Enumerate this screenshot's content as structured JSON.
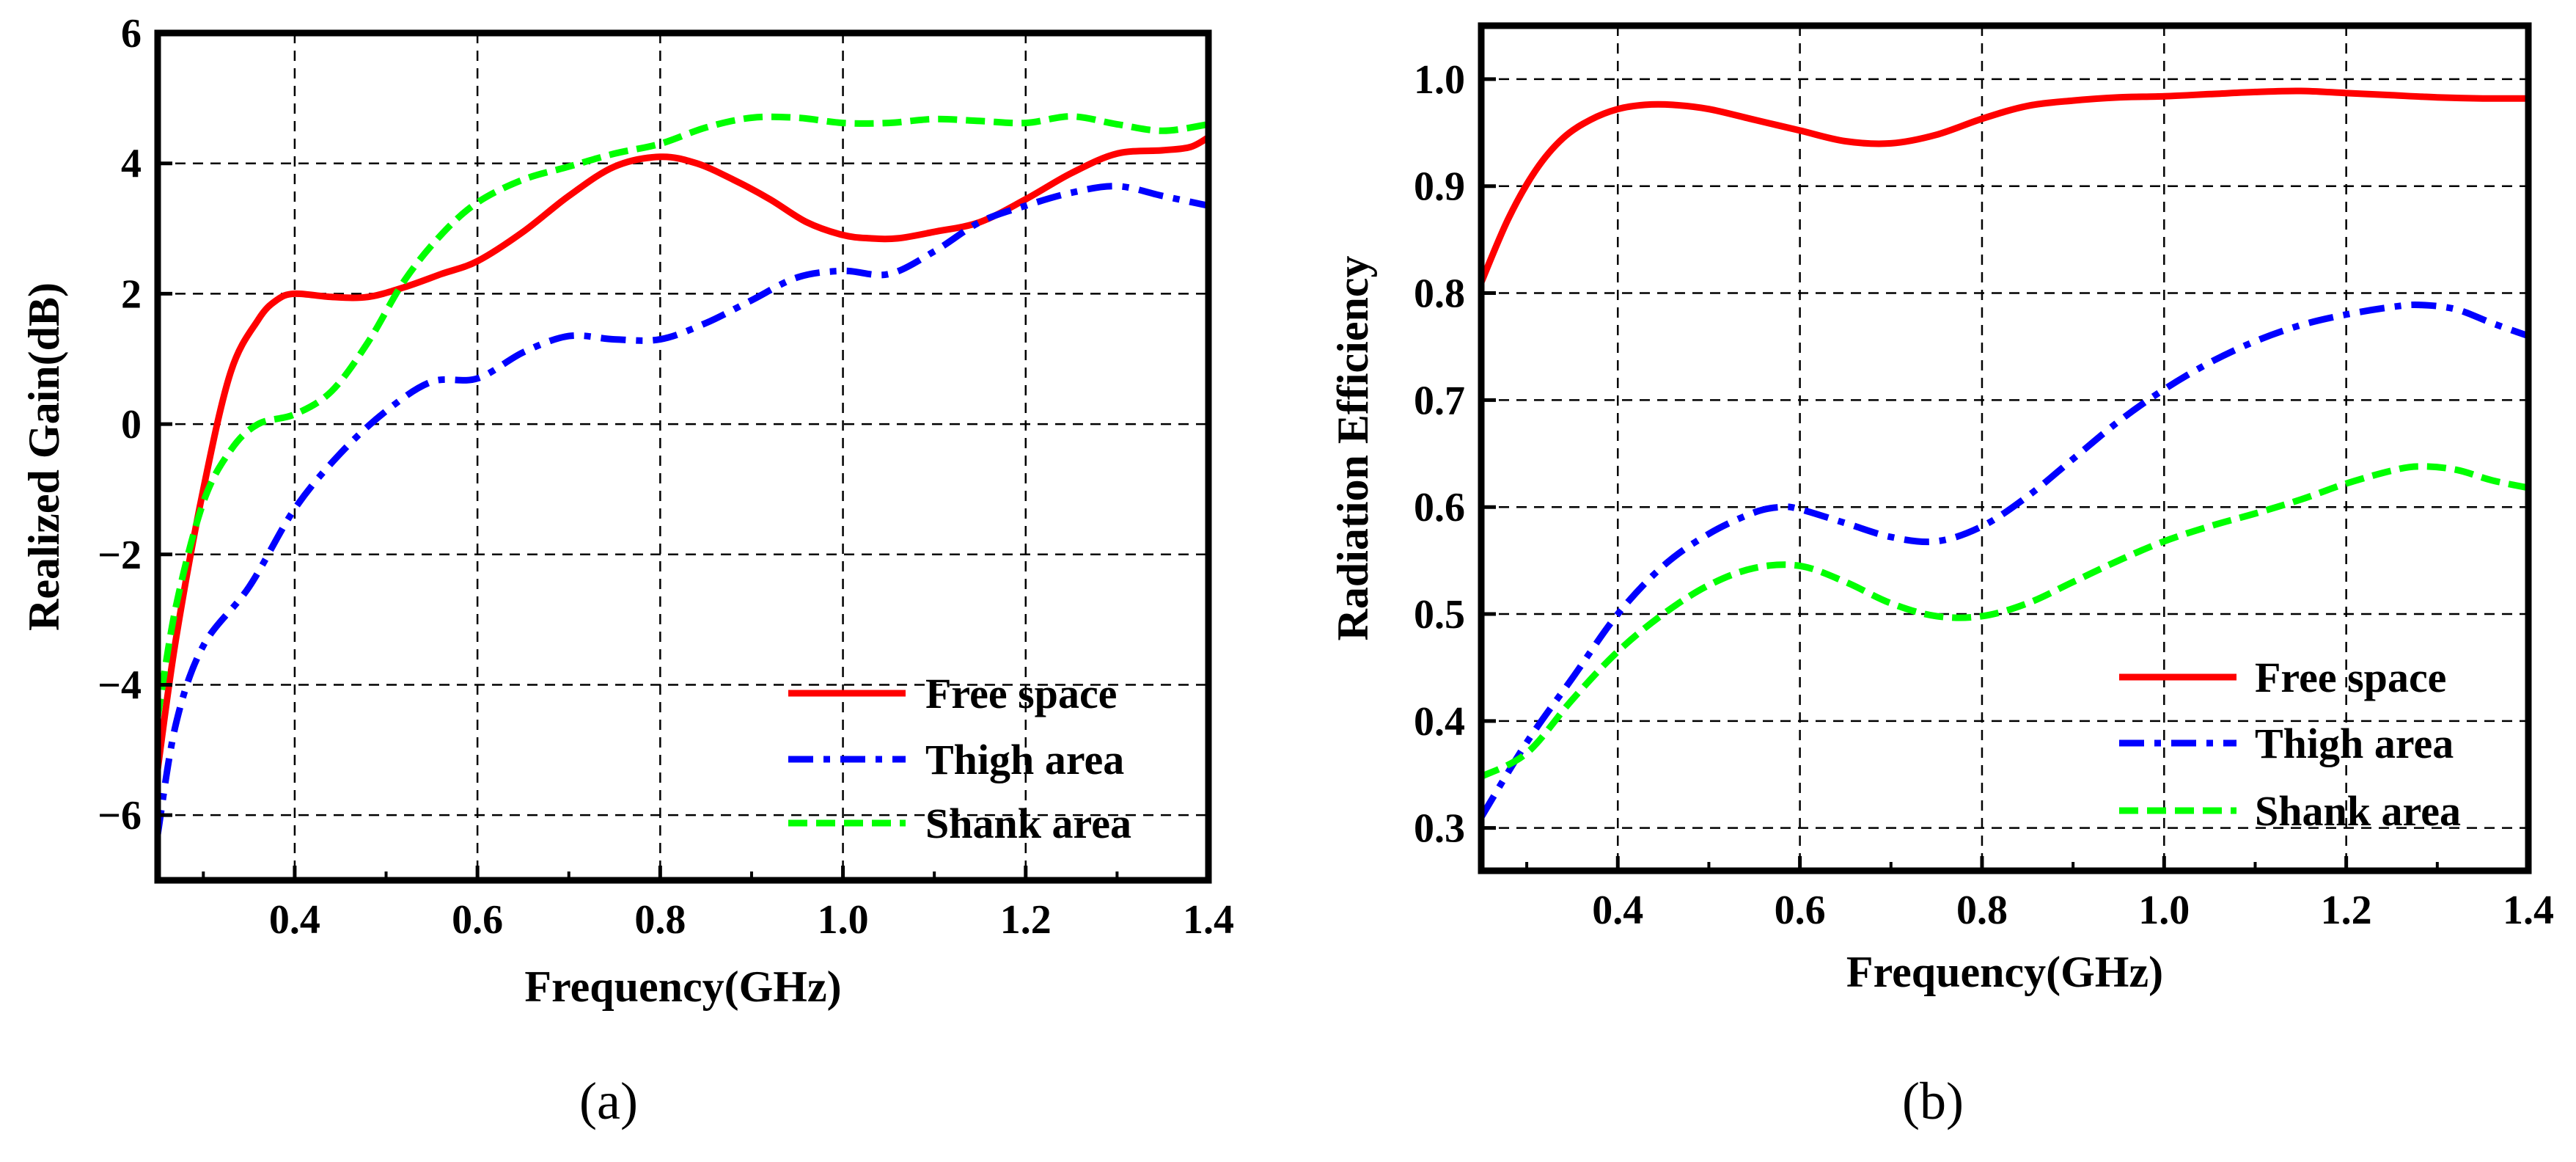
{
  "chart_data": [
    {
      "type": "line",
      "caption": "(a)",
      "xlabel": "Frequency(GHz)",
      "ylabel": "Realized Gain(dB)",
      "xlim": [
        0.25,
        1.4
      ],
      "ylim": [
        -7,
        6
      ],
      "xticks": [
        0.4,
        0.6,
        0.8,
        1.0,
        1.2,
        1.4
      ],
      "xtick_labels": [
        "0.4",
        "0.6",
        "0.8",
        "1.0",
        "1.2",
        "1.4"
      ],
      "yticks": [
        -6,
        -4,
        -2,
        0,
        2,
        4,
        6
      ],
      "ytick_labels": [
        "−6",
        "−4",
        "−2",
        "0",
        "2",
        "4",
        "6"
      ],
      "grid": true,
      "legend_position": "bottom-right",
      "series": [
        {
          "name": "Free space",
          "color": "#ff0000",
          "style": "solid",
          "x": [
            0.25,
            0.27,
            0.3,
            0.33,
            0.36,
            0.38,
            0.4,
            0.44,
            0.48,
            0.52,
            0.56,
            0.6,
            0.65,
            0.7,
            0.75,
            0.8,
            0.84,
            0.88,
            0.92,
            0.96,
            1.0,
            1.03,
            1.06,
            1.1,
            1.15,
            1.2,
            1.25,
            1.3,
            1.35,
            1.38,
            1.4
          ],
          "y": [
            -5.3,
            -3.3,
            -1.0,
            0.8,
            1.6,
            1.9,
            2.0,
            1.95,
            1.95,
            2.1,
            2.3,
            2.5,
            2.95,
            3.5,
            3.95,
            4.1,
            4.0,
            3.75,
            3.45,
            3.1,
            2.9,
            2.85,
            2.85,
            2.95,
            3.1,
            3.45,
            3.85,
            4.15,
            4.2,
            4.25,
            4.4
          ]
        },
        {
          "name": "Thigh area",
          "color": "#0000ff",
          "style": "dashdot",
          "x": [
            0.25,
            0.27,
            0.3,
            0.35,
            0.4,
            0.45,
            0.5,
            0.55,
            0.6,
            0.65,
            0.7,
            0.75,
            0.8,
            0.85,
            0.9,
            0.95,
            1.0,
            1.05,
            1.1,
            1.15,
            1.2,
            1.25,
            1.3,
            1.35,
            1.4
          ],
          "y": [
            -6.3,
            -4.6,
            -3.4,
            -2.5,
            -1.3,
            -0.45,
            0.2,
            0.65,
            0.7,
            1.1,
            1.35,
            1.3,
            1.3,
            1.55,
            1.9,
            2.25,
            2.35,
            2.3,
            2.65,
            3.1,
            3.35,
            3.55,
            3.65,
            3.5,
            3.35
          ]
        },
        {
          "name": "Shank area",
          "color": "#00ff00",
          "style": "dashed",
          "x": [
            0.25,
            0.27,
            0.3,
            0.33,
            0.36,
            0.4,
            0.44,
            0.48,
            0.52,
            0.56,
            0.6,
            0.65,
            0.7,
            0.75,
            0.8,
            0.85,
            0.9,
            0.95,
            1.0,
            1.05,
            1.1,
            1.15,
            1.2,
            1.25,
            1.3,
            1.35,
            1.4
          ],
          "y": [
            -4.5,
            -2.8,
            -1.2,
            -0.4,
            0.0,
            0.15,
            0.5,
            1.25,
            2.2,
            2.9,
            3.4,
            3.75,
            3.95,
            4.15,
            4.3,
            4.55,
            4.7,
            4.7,
            4.62,
            4.62,
            4.68,
            4.65,
            4.62,
            4.72,
            4.6,
            4.5,
            4.6
          ]
        }
      ]
    },
    {
      "type": "line",
      "caption": "(b)",
      "xlabel": "Frequency(GHz)",
      "ylabel": "Radiation Efficiency",
      "xlim": [
        0.25,
        1.4
      ],
      "ylim": [
        0.26,
        1.05
      ],
      "xticks": [
        0.4,
        0.6,
        0.8,
        1.0,
        1.2,
        1.4
      ],
      "xtick_labels": [
        "0.4",
        "0.6",
        "0.8",
        "1.0",
        "1.2",
        "1.4"
      ],
      "yticks": [
        0.3,
        0.4,
        0.5,
        0.6,
        0.7,
        0.8,
        0.9,
        1.0
      ],
      "ytick_labels": [
        "0.3",
        "0.4",
        "0.5",
        "0.6",
        "0.7",
        "0.8",
        "0.9",
        "1.0"
      ],
      "grid": true,
      "legend_position": "bottom-right",
      "series": [
        {
          "name": "Free space",
          "color": "#ff0000",
          "style": "solid",
          "x": [
            0.25,
            0.28,
            0.31,
            0.34,
            0.37,
            0.4,
            0.43,
            0.46,
            0.5,
            0.55,
            0.6,
            0.65,
            0.7,
            0.75,
            0.8,
            0.85,
            0.9,
            0.95,
            1.0,
            1.05,
            1.1,
            1.15,
            1.2,
            1.25,
            1.3,
            1.35,
            1.4
          ],
          "y": [
            0.81,
            0.87,
            0.915,
            0.945,
            0.962,
            0.972,
            0.976,
            0.976,
            0.972,
            0.962,
            0.952,
            0.942,
            0.94,
            0.948,
            0.963,
            0.975,
            0.98,
            0.983,
            0.984,
            0.986,
            0.988,
            0.989,
            0.987,
            0.985,
            0.983,
            0.982,
            0.982
          ]
        },
        {
          "name": "Thigh area",
          "color": "#0000ff",
          "style": "dashdot",
          "x": [
            0.25,
            0.3,
            0.35,
            0.4,
            0.45,
            0.5,
            0.55,
            0.58,
            0.6,
            0.65,
            0.7,
            0.75,
            0.8,
            0.85,
            0.9,
            0.95,
            1.0,
            1.05,
            1.1,
            1.15,
            1.2,
            1.25,
            1.28,
            1.32,
            1.36,
            1.4
          ],
          "y": [
            0.31,
            0.38,
            0.44,
            0.5,
            0.545,
            0.575,
            0.595,
            0.6,
            0.598,
            0.585,
            0.572,
            0.568,
            0.582,
            0.61,
            0.645,
            0.68,
            0.71,
            0.735,
            0.755,
            0.77,
            0.78,
            0.787,
            0.789,
            0.785,
            0.772,
            0.76
          ]
        },
        {
          "name": "Shank area",
          "color": "#00ff00",
          "style": "dashed",
          "x": [
            0.25,
            0.3,
            0.35,
            0.4,
            0.45,
            0.5,
            0.55,
            0.6,
            0.65,
            0.7,
            0.75,
            0.8,
            0.85,
            0.9,
            0.95,
            1.0,
            1.05,
            1.1,
            1.15,
            1.2,
            1.25,
            1.28,
            1.32,
            1.36,
            1.4
          ],
          "y": [
            0.348,
            0.37,
            0.42,
            0.465,
            0.5,
            0.527,
            0.543,
            0.545,
            0.53,
            0.51,
            0.498,
            0.498,
            0.51,
            0.53,
            0.55,
            0.568,
            0.582,
            0.594,
            0.607,
            0.622,
            0.634,
            0.638,
            0.635,
            0.625,
            0.618
          ]
        }
      ]
    }
  ]
}
